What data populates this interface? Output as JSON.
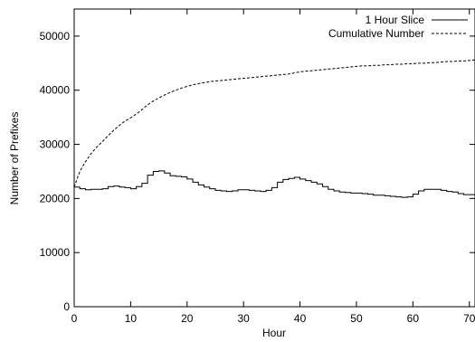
{
  "chart_data": {
    "type": "line",
    "xlabel": "Hour",
    "ylabel": "Number of Prefixes",
    "xlim": [
      0,
      71
    ],
    "ylim": [
      0,
      55000
    ],
    "x_ticks": [
      "0",
      "10",
      "20",
      "30",
      "40",
      "50",
      "60",
      "70"
    ],
    "y_ticks": [
      "0",
      "10000",
      "20000",
      "30000",
      "40000",
      "50000"
    ],
    "grid": false,
    "legend_position": "top-right",
    "series": [
      {
        "name": "1 Hour Slice",
        "style": "step-solid",
        "x": [
          0,
          1,
          2,
          3,
          4,
          5,
          6,
          7,
          8,
          9,
          10,
          11,
          12,
          13,
          14,
          15,
          16,
          17,
          18,
          19,
          20,
          21,
          22,
          23,
          24,
          25,
          26,
          27,
          28,
          29,
          30,
          31,
          32,
          33,
          34,
          35,
          36,
          37,
          38,
          39,
          40,
          41,
          42,
          43,
          44,
          45,
          46,
          47,
          48,
          49,
          50,
          51,
          52,
          53,
          54,
          55,
          56,
          57,
          58,
          59,
          60,
          61,
          62,
          63,
          64,
          65,
          66,
          67,
          68,
          69,
          70,
          71
        ],
        "values": [
          22100,
          21800,
          21600,
          21700,
          21700,
          21800,
          22200,
          22300,
          22100,
          22000,
          21800,
          22200,
          22800,
          24300,
          25000,
          25100,
          24700,
          24200,
          24100,
          24000,
          23600,
          23000,
          22500,
          22100,
          21800,
          21500,
          21400,
          21300,
          21400,
          21600,
          21600,
          21500,
          21400,
          21300,
          21500,
          22000,
          23000,
          23500,
          23700,
          23900,
          23600,
          23300,
          23000,
          22700,
          22200,
          21700,
          21400,
          21200,
          21100,
          21000,
          21000,
          20900,
          20800,
          20600,
          20600,
          20500,
          20400,
          20300,
          20200,
          20300,
          20800,
          21400,
          21700,
          21700,
          21700,
          21500,
          21300,
          21200,
          20900,
          20700,
          20700,
          20700
        ]
      },
      {
        "name": "Cumulative Number",
        "style": "dashed",
        "x": [
          0,
          1,
          2,
          3,
          4,
          5,
          6,
          7,
          8,
          9,
          10,
          11,
          12,
          13,
          14,
          15,
          16,
          17,
          18,
          19,
          20,
          21,
          22,
          23,
          24,
          25,
          26,
          27,
          28,
          29,
          30,
          31,
          32,
          33,
          34,
          35,
          36,
          37,
          38,
          39,
          40,
          41,
          42,
          43,
          44,
          45,
          46,
          47,
          48,
          49,
          50,
          51,
          52,
          53,
          54,
          55,
          56,
          57,
          58,
          59,
          60,
          61,
          62,
          63,
          64,
          65,
          66,
          67,
          68,
          69,
          70,
          71
        ],
        "values": [
          22100,
          25000,
          26800,
          28300,
          29500,
          30500,
          31600,
          32600,
          33500,
          34300,
          34900,
          35600,
          36400,
          37300,
          38000,
          38600,
          39100,
          39600,
          40000,
          40400,
          40700,
          41000,
          41200,
          41400,
          41600,
          41700,
          41800,
          41900,
          42000,
          42100,
          42200,
          42300,
          42400,
          42500,
          42600,
          42700,
          42800,
          42900,
          43000,
          43200,
          43400,
          43500,
          43600,
          43700,
          43800,
          43900,
          44000,
          44100,
          44200,
          44300,
          44400,
          44500,
          44500,
          44600,
          44600,
          44700,
          44700,
          44800,
          44800,
          44900,
          44900,
          45000,
          45000,
          45100,
          45100,
          45200,
          45300,
          45300,
          45400,
          45400,
          45500,
          45600
        ]
      }
    ]
  }
}
